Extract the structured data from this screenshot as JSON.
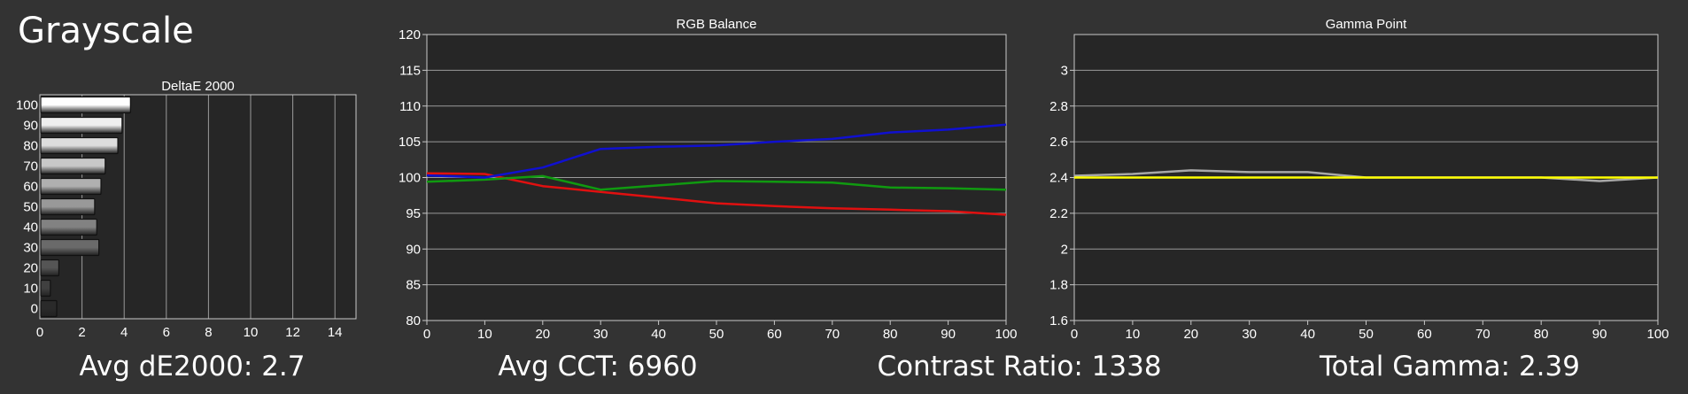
{
  "page": {
    "title": "Grayscale"
  },
  "stats": {
    "avg_de": "Avg dE2000: 2.7",
    "avg_cct": "Avg CCT: 6960",
    "contrast": "Contrast Ratio: 1338",
    "gamma": "Total Gamma: 2.39"
  },
  "colors": {
    "background": "#333333",
    "plot_area": "#262626",
    "grid": "#9a9a9a",
    "red": "#e01010",
    "green": "#109a10",
    "blue": "#1010d0",
    "gamma_measured": "#a8a8a8",
    "gamma_target": "#ffff00"
  },
  "chart_data": [
    {
      "type": "bar",
      "orientation": "horizontal",
      "title": "DeltaE 2000",
      "categories": [
        "100",
        "90",
        "80",
        "70",
        "60",
        "50",
        "40",
        "30",
        "20",
        "10",
        "0"
      ],
      "values": [
        4.3,
        3.9,
        3.7,
        3.1,
        2.9,
        2.6,
        2.7,
        2.8,
        0.9,
        0.5,
        0.8
      ],
      "bar_shades": [
        "#ffffff",
        "#eeeeee",
        "#dddddd",
        "#c8c8c8",
        "#b0b0b0",
        "#999999",
        "#828282",
        "#6a6a6a",
        "#555555",
        "#404040",
        "#2a2a2a"
      ],
      "xlim": [
        0,
        15
      ],
      "xticks": [
        "0",
        "2",
        "4",
        "6",
        "8",
        "10",
        "12",
        "14"
      ],
      "xtick_values": [
        0,
        2,
        4,
        6,
        8,
        10,
        12,
        14
      ],
      "grid": true
    },
    {
      "type": "line",
      "title": "RGB Balance",
      "x": [
        0,
        10,
        20,
        30,
        40,
        50,
        60,
        70,
        80,
        90,
        100
      ],
      "series": [
        {
          "color": "red",
          "values": [
            100.6,
            100.5,
            98.8,
            98.0,
            97.2,
            96.4,
            96.0,
            95.7,
            95.5,
            95.3,
            94.8
          ]
        },
        {
          "color": "green",
          "values": [
            99.4,
            99.7,
            100.2,
            98.3,
            98.9,
            99.5,
            99.4,
            99.3,
            98.6,
            98.5,
            98.3
          ]
        },
        {
          "color": "blue",
          "values": [
            100.3,
            100.0,
            101.4,
            104.0,
            104.3,
            104.5,
            105.0,
            105.4,
            106.3,
            106.7,
            107.4
          ]
        }
      ],
      "xlim": [
        0,
        100
      ],
      "ylim": [
        80,
        120
      ],
      "xticks": [
        "0",
        "10",
        "20",
        "30",
        "40",
        "50",
        "60",
        "70",
        "80",
        "90",
        "100"
      ],
      "yticks": [
        "80",
        "85",
        "90",
        "95",
        "100",
        "105",
        "110",
        "115",
        "120"
      ],
      "grid": true
    },
    {
      "type": "line",
      "title": "Gamma Point",
      "x": [
        0,
        10,
        20,
        30,
        40,
        50,
        60,
        70,
        80,
        90,
        100
      ],
      "series": [
        {
          "color": "gamma_measured",
          "values": [
            2.41,
            2.42,
            2.44,
            2.43,
            2.43,
            2.4,
            2.4,
            2.4,
            2.4,
            2.38,
            2.4
          ]
        },
        {
          "color": "gamma_target",
          "values": [
            2.4,
            2.4,
            2.4,
            2.4,
            2.4,
            2.4,
            2.4,
            2.4,
            2.4,
            2.4,
            2.4
          ]
        }
      ],
      "xlim": [
        0,
        100
      ],
      "ylim": [
        1.6,
        3.2
      ],
      "xticks": [
        "0",
        "10",
        "20",
        "30",
        "40",
        "50",
        "60",
        "70",
        "80",
        "90",
        "100"
      ],
      "yticks": [
        "1.6",
        "1.8",
        "2",
        "2.2",
        "2.4",
        "2.6",
        "2.8",
        "3"
      ],
      "ytick_values": [
        1.6,
        1.8,
        2.0,
        2.2,
        2.4,
        2.6,
        2.8,
        3.0
      ],
      "grid": true
    }
  ]
}
